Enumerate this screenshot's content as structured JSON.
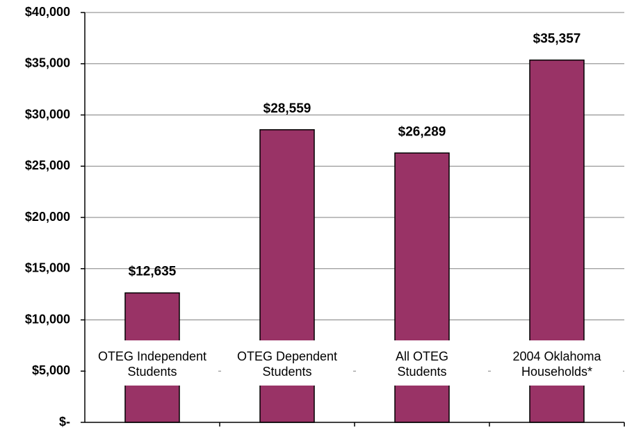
{
  "chart_data": {
    "type": "bar",
    "categories": [
      "OTEG Independent\nStudents",
      "OTEG Dependent\nStudents",
      "All OTEG\nStudents",
      "2004 Oklahoma\nHouseholds*"
    ],
    "values": [
      12635,
      28559,
      26289,
      35357
    ],
    "value_labels": [
      "$12,635",
      "$28,559",
      "$26,289",
      "$35,357"
    ],
    "color": "#993366",
    "ylim": [
      0,
      40000
    ],
    "yticks": [
      {
        "value": 0,
        "label": "$-"
      },
      {
        "value": 5000,
        "label": "$5,000"
      },
      {
        "value": 10000,
        "label": "$10,000"
      },
      {
        "value": 15000,
        "label": "$15,000"
      },
      {
        "value": 20000,
        "label": "$20,000"
      },
      {
        "value": 25000,
        "label": "$25,000"
      },
      {
        "value": 30000,
        "label": "$30,000"
      },
      {
        "value": 35000,
        "label": "$35,000"
      },
      {
        "value": 40000,
        "label": "$40,000"
      }
    ],
    "grid": true
  }
}
